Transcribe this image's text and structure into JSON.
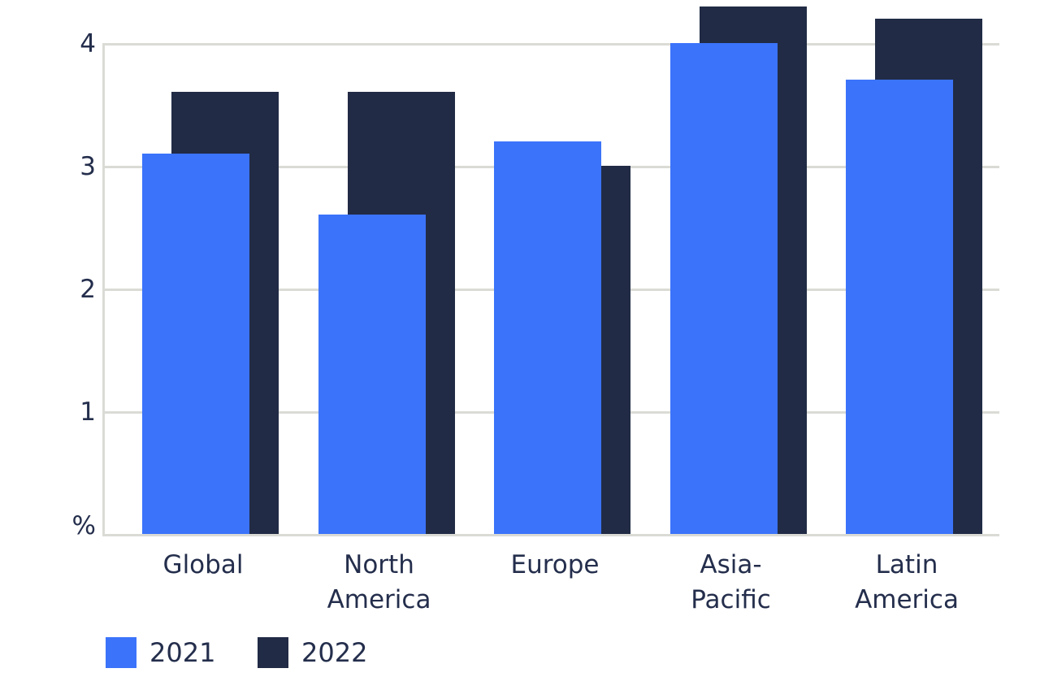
{
  "chart_data": {
    "type": "bar",
    "title": "",
    "categories": [
      "Global",
      "North America",
      "Europe",
      "Asia-Pacific",
      "Latin America"
    ],
    "category_lines": [
      [
        "Global"
      ],
      [
        "North",
        "America"
      ],
      [
        "Europe"
      ],
      [
        "Asia-",
        "Pacific"
      ],
      [
        "Latin",
        "America"
      ]
    ],
    "series": [
      {
        "name": "2021",
        "color": "#3b73fa",
        "values": [
          3.1,
          2.6,
          3.2,
          4.0,
          3.7
        ]
      },
      {
        "name": "2022",
        "color": "#212b45",
        "values": [
          3.6,
          3.6,
          3.0,
          4.3,
          4.2
        ]
      }
    ],
    "xlabel": "",
    "ylabel": "%",
    "yticks": [
      1,
      2,
      3,
      4
    ],
    "ylim": [
      0,
      4.35
    ],
    "grid": true,
    "legend_position": "bottom-left",
    "legend": [
      "2021",
      "2022"
    ],
    "colors": {
      "bar_2021": "#3b73fa",
      "bar_2022": "#212b45",
      "grid": "#dbdbd6",
      "text": "#242e4c",
      "background": "#ffffff"
    }
  }
}
